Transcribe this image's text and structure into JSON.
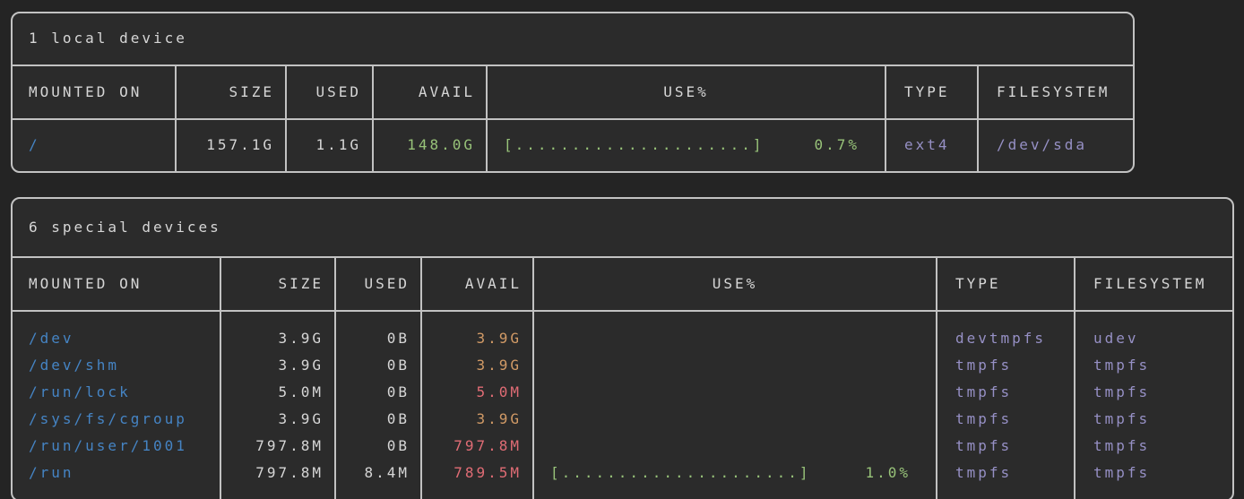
{
  "theme": {
    "page_bg": "#242424",
    "table_bg": "#2b2b2b",
    "border": "#c2c2c2",
    "text": "#d6d6d6",
    "blue": "#4584c4",
    "green": "#98c379",
    "tan": "#d19a66",
    "red": "#e06c75",
    "purple": "#9690c5"
  },
  "tables": [
    {
      "title": "1 local device",
      "columns": [
        "MOUNTED ON",
        "SIZE",
        "USED",
        "AVAIL",
        "USE%",
        "TYPE",
        "FILESYSTEM"
      ],
      "rows": [
        {
          "mounted_on": "/",
          "size": "157.1G",
          "used": "1.1G",
          "avail": "148.0G",
          "bar": "[.....................]",
          "pct": "0.7%",
          "type": "ext4",
          "filesystem": "/dev/sda"
        }
      ]
    },
    {
      "title": "6 special devices",
      "columns": [
        "MOUNTED ON",
        "SIZE",
        "USED",
        "AVAIL",
        "USE%",
        "TYPE",
        "FILESYSTEM"
      ],
      "rows": [
        {
          "mounted_on": "/dev",
          "size": "3.9G",
          "used": "0B",
          "avail": "3.9G",
          "bar": "",
          "pct": "",
          "type": "devtmpfs",
          "filesystem": "udev"
        },
        {
          "mounted_on": "/dev/shm",
          "size": "3.9G",
          "used": "0B",
          "avail": "3.9G",
          "bar": "",
          "pct": "",
          "type": "tmpfs",
          "filesystem": "tmpfs"
        },
        {
          "mounted_on": "/run/lock",
          "size": "5.0M",
          "used": "0B",
          "avail": "5.0M",
          "bar": "",
          "pct": "",
          "type": "tmpfs",
          "filesystem": "tmpfs"
        },
        {
          "mounted_on": "/sys/fs/cgroup",
          "size": "3.9G",
          "used": "0B",
          "avail": "3.9G",
          "bar": "",
          "pct": "",
          "type": "tmpfs",
          "filesystem": "tmpfs"
        },
        {
          "mounted_on": "/run/user/1001",
          "size": "797.8M",
          "used": "0B",
          "avail": "797.8M",
          "bar": "",
          "pct": "",
          "type": "tmpfs",
          "filesystem": "tmpfs"
        },
        {
          "mounted_on": "/run",
          "size": "797.8M",
          "used": "8.4M",
          "avail": "789.5M",
          "bar": "[.....................]",
          "pct": "1.0%",
          "type": "tmpfs",
          "filesystem": "tmpfs"
        }
      ]
    }
  ]
}
